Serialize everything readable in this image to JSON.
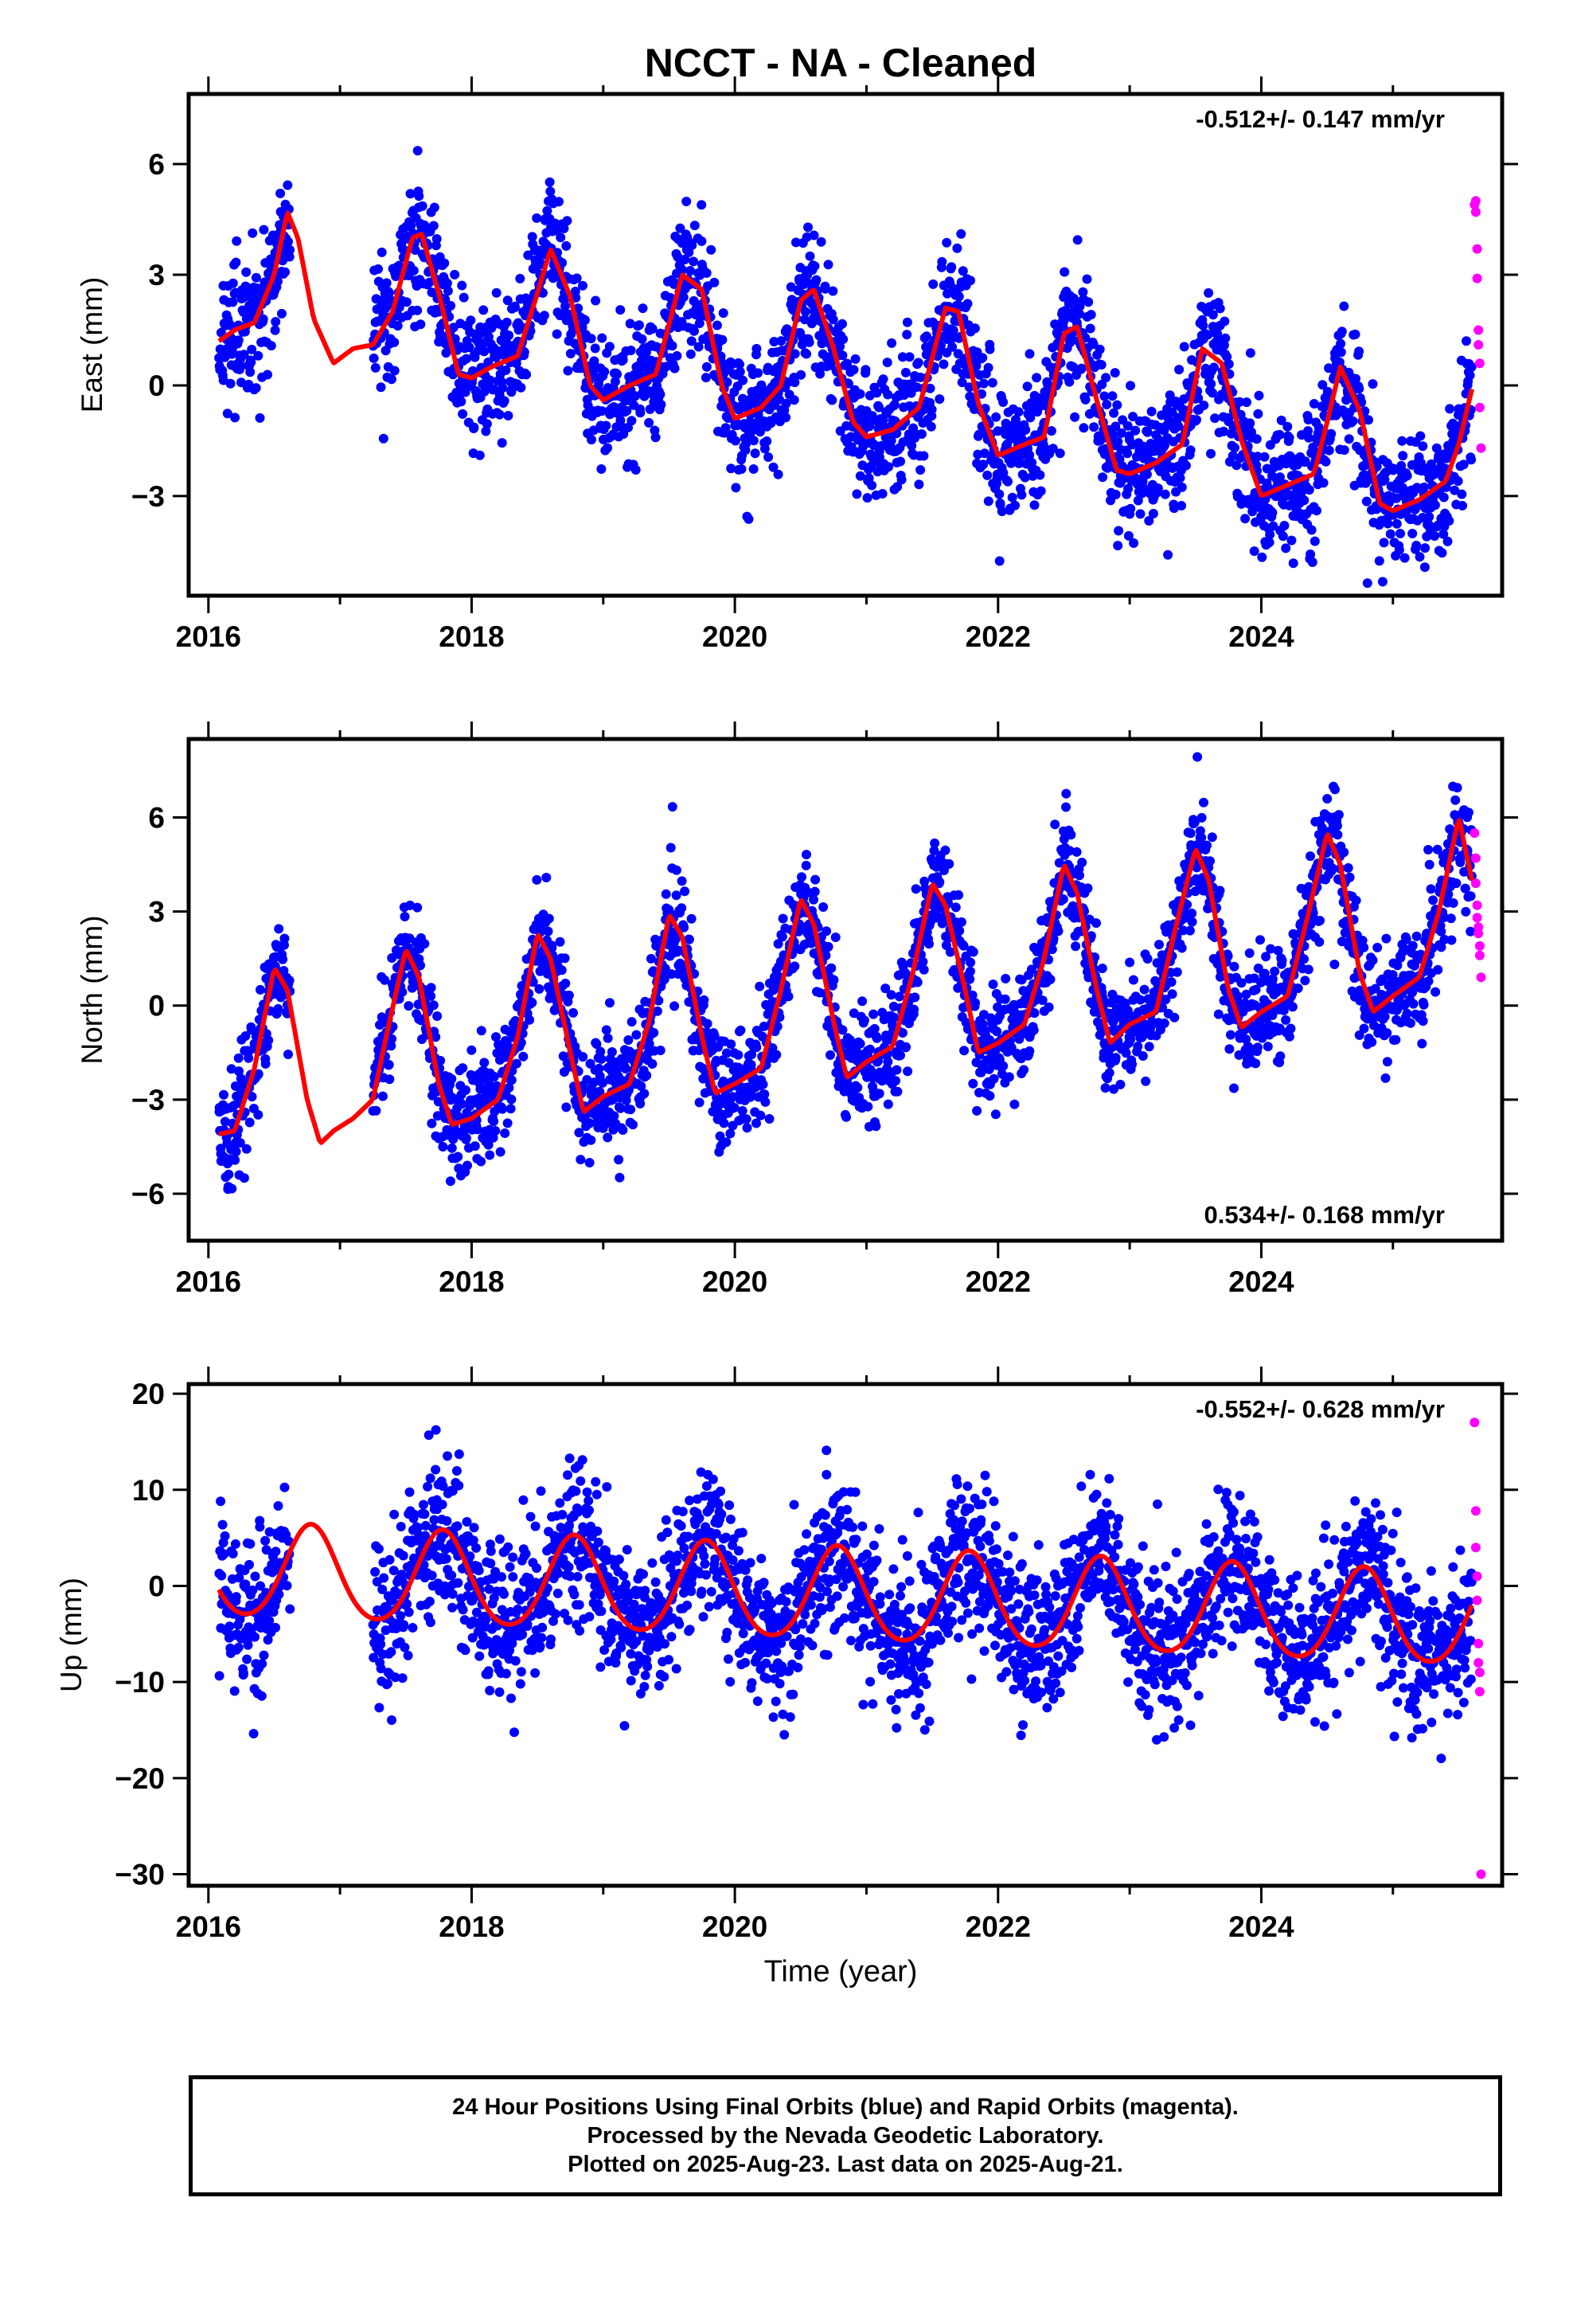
{
  "title": "NCCT  - NA - Cleaned",
  "colors": {
    "final_orbits": "#0000ff",
    "rapid_orbits": "#ff00ff",
    "model_fit": "#ff0000",
    "frame": "#000000"
  },
  "footer": {
    "line1": "24 Hour Positions Using Final Orbits (blue) and Rapid Orbits (magenta).",
    "line2": "Processed by the Nevada Geodetic Laboratory.",
    "line3": "Plotted on 2025-Aug-23. Last data on 2025-Aug-21."
  },
  "chart_data": [
    {
      "type": "scatter",
      "component": "east",
      "ylabel": "East (mm)",
      "xlabel": "",
      "xlim": [
        2015.85,
        2025.83
      ],
      "ylim": [
        -5.7,
        7.9
      ],
      "xticks": [
        2016,
        2018,
        2020,
        2022,
        2024
      ],
      "yticks": [
        -3,
        0,
        3,
        6
      ],
      "rate": "-0.512+/- 0.147 mm/yr",
      "rate_position": "top-right",
      "model": {
        "name": "model fit",
        "x": [
          2016.08,
          2016.2,
          2016.35,
          2016.5,
          2016.6,
          2016.68,
          2016.8,
          2016.95,
          2017.1,
          2017.25,
          2017.4,
          2017.55,
          2017.62,
          2017.75,
          2017.9,
          2018.0,
          2018.15,
          2018.35,
          2018.5,
          2018.6,
          2018.75,
          2018.9,
          2019.0,
          2019.2,
          2019.4,
          2019.6,
          2019.75,
          2019.9,
          2020.0,
          2020.2,
          2020.35,
          2020.5,
          2020.6,
          2020.75,
          2020.9,
          2021.0,
          2021.2,
          2021.4,
          2021.6,
          2021.7,
          2021.85,
          2022.0,
          2022.2,
          2022.35,
          2022.5,
          2022.6,
          2022.75,
          2022.9,
          2023.0,
          2023.2,
          2023.4,
          2023.55,
          2023.7,
          2023.85,
          2024.0,
          2024.2,
          2024.4,
          2024.5,
          2024.6,
          2024.75,
          2024.9,
          2025.0,
          2025.2,
          2025.4,
          2025.5,
          2025.6
        ],
        "y": [
          1.2,
          1.5,
          1.7,
          3.0,
          4.7,
          4.0,
          1.8,
          0.6,
          1.0,
          1.1,
          2.0,
          4.0,
          4.1,
          2.5,
          0.3,
          0.2,
          0.5,
          0.8,
          2.5,
          3.7,
          2.4,
          0.0,
          -0.4,
          0.0,
          0.3,
          3.0,
          2.6,
          0.0,
          -0.9,
          -0.6,
          0.0,
          2.3,
          2.6,
          1.0,
          -1.0,
          -1.4,
          -1.2,
          -0.6,
          2.1,
          2.0,
          -0.5,
          -1.9,
          -1.6,
          -1.4,
          1.4,
          1.6,
          -0.4,
          -2.3,
          -2.4,
          -2.1,
          -1.6,
          1.0,
          0.6,
          -1.5,
          -3.0,
          -2.7,
          -2.4,
          -1.0,
          0.5,
          -0.7,
          -3.2,
          -3.4,
          -3.1,
          -2.6,
          -1.6,
          -0.1
        ]
      },
      "rapid": {
        "name": "rapid orbits",
        "x": [
          2025.62,
          2025.63,
          2025.63,
          2025.64,
          2025.64,
          2025.65,
          2025.65,
          2025.66,
          2025.66,
          2025.67
        ],
        "y": [
          4.9,
          5.0,
          4.7,
          3.7,
          2.9,
          1.5,
          1.1,
          0.6,
          -0.6,
          -1.7
        ]
      },
      "final_orbits_summary": {
        "name": "final orbits",
        "x_start": 2016.08,
        "x_end": 2025.6,
        "points_per_year": 300,
        "scatter_sd_mm": 0.9
      }
    },
    {
      "type": "scatter",
      "component": "north",
      "ylabel": "North (mm)",
      "xlabel": "",
      "xlim": [
        2015.85,
        2025.83
      ],
      "ylim": [
        -7.5,
        8.5
      ],
      "xticks": [
        2016,
        2018,
        2020,
        2022,
        2024
      ],
      "yticks": [
        -6,
        -3,
        0,
        3,
        6
      ],
      "rate": "0.534+/- 0.168 mm/yr",
      "rate_position": "bottom-right",
      "model": {
        "name": "model fit",
        "x": [
          2016.08,
          2016.2,
          2016.35,
          2016.5,
          2016.6,
          2016.75,
          2016.85,
          2016.95,
          2017.1,
          2017.25,
          2017.35,
          2017.5,
          2017.6,
          2017.75,
          2017.85,
          2018.0,
          2018.2,
          2018.35,
          2018.5,
          2018.6,
          2018.75,
          2018.85,
          2019.0,
          2019.2,
          2019.35,
          2019.5,
          2019.6,
          2019.75,
          2019.85,
          2020.0,
          2020.2,
          2020.35,
          2020.5,
          2020.6,
          2020.75,
          2020.85,
          2021.0,
          2021.2,
          2021.35,
          2021.5,
          2021.6,
          2021.75,
          2021.85,
          2022.0,
          2022.2,
          2022.35,
          2022.5,
          2022.6,
          2022.75,
          2022.85,
          2023.0,
          2023.2,
          2023.35,
          2023.5,
          2023.6,
          2023.75,
          2023.85,
          2024.0,
          2024.2,
          2024.35,
          2024.5,
          2024.6,
          2024.75,
          2024.85,
          2025.0,
          2025.2,
          2025.35,
          2025.5,
          2025.6
        ],
        "y": [
          -4.1,
          -4.0,
          -2.0,
          1.2,
          0.5,
          -3.0,
          -4.4,
          -4.0,
          -3.6,
          -3.0,
          -1.0,
          1.8,
          0.9,
          -2.5,
          -3.8,
          -3.6,
          -3.0,
          -1.0,
          2.3,
          1.5,
          -1.5,
          -3.4,
          -2.9,
          -2.5,
          -0.5,
          2.9,
          2.2,
          -1.0,
          -2.8,
          -2.5,
          -2.0,
          0.5,
          3.4,
          2.6,
          -0.5,
          -2.3,
          -1.8,
          -1.3,
          1.0,
          3.9,
          3.2,
          0.5,
          -1.5,
          -1.2,
          -0.6,
          1.5,
          4.5,
          3.6,
          0.5,
          -1.2,
          -0.6,
          -0.2,
          2.5,
          5.0,
          4.0,
          0.5,
          -0.7,
          -0.2,
          0.3,
          2.8,
          5.5,
          4.5,
          1.0,
          -0.2,
          0.3,
          0.9,
          3.0,
          6.0,
          4.0
        ]
      },
      "rapid": {
        "name": "rapid orbits",
        "x": [
          2025.62,
          2025.63,
          2025.63,
          2025.64,
          2025.64,
          2025.65,
          2025.65,
          2025.66,
          2025.66,
          2025.67
        ],
        "y": [
          5.5,
          4.7,
          3.9,
          3.2,
          2.8,
          2.5,
          2.3,
          1.9,
          1.6,
          0.9
        ]
      },
      "final_orbits_summary": {
        "name": "final orbits",
        "x_start": 2016.08,
        "x_end": 2025.6,
        "points_per_year": 300,
        "scatter_sd_mm": 0.9
      }
    },
    {
      "type": "scatter",
      "component": "up",
      "ylabel": "Up (mm)",
      "xlabel": "Time (year)",
      "xlim": [
        2015.85,
        2025.83
      ],
      "ylim": [
        -31.2,
        21.0
      ],
      "xticks": [
        2016,
        2018,
        2020,
        2022,
        2024
      ],
      "yticks": [
        -30,
        -20,
        -10,
        0,
        10,
        20
      ],
      "rate": "-0.552+/- 0.628 mm/yr",
      "rate_position": "top-right",
      "model": {
        "name": "model fit",
        "x_start": 2016.08,
        "x_end": 2025.6,
        "offset_mm": 1.5,
        "trend_mm_per_yr": -0.55,
        "annual_amplitude_mm": 4.8,
        "annual_peak_year_fraction": 0.78,
        "semiannual_amplitude_mm": 0.5
      },
      "rapid": {
        "name": "rapid orbits",
        "x": [
          2025.62,
          2025.63,
          2025.63,
          2025.64,
          2025.64,
          2025.65,
          2025.65,
          2025.66,
          2025.66,
          2025.67
        ],
        "y": [
          17.0,
          7.8,
          4.0,
          1.0,
          -1.5,
          -6.0,
          -8.0,
          -9.0,
          -11.0,
          -30.0
        ]
      },
      "final_orbits_summary": {
        "name": "final orbits",
        "x_start": 2016.08,
        "x_end": 2025.6,
        "points_per_year": 300,
        "scatter_sd_mm": 4.0
      }
    }
  ]
}
